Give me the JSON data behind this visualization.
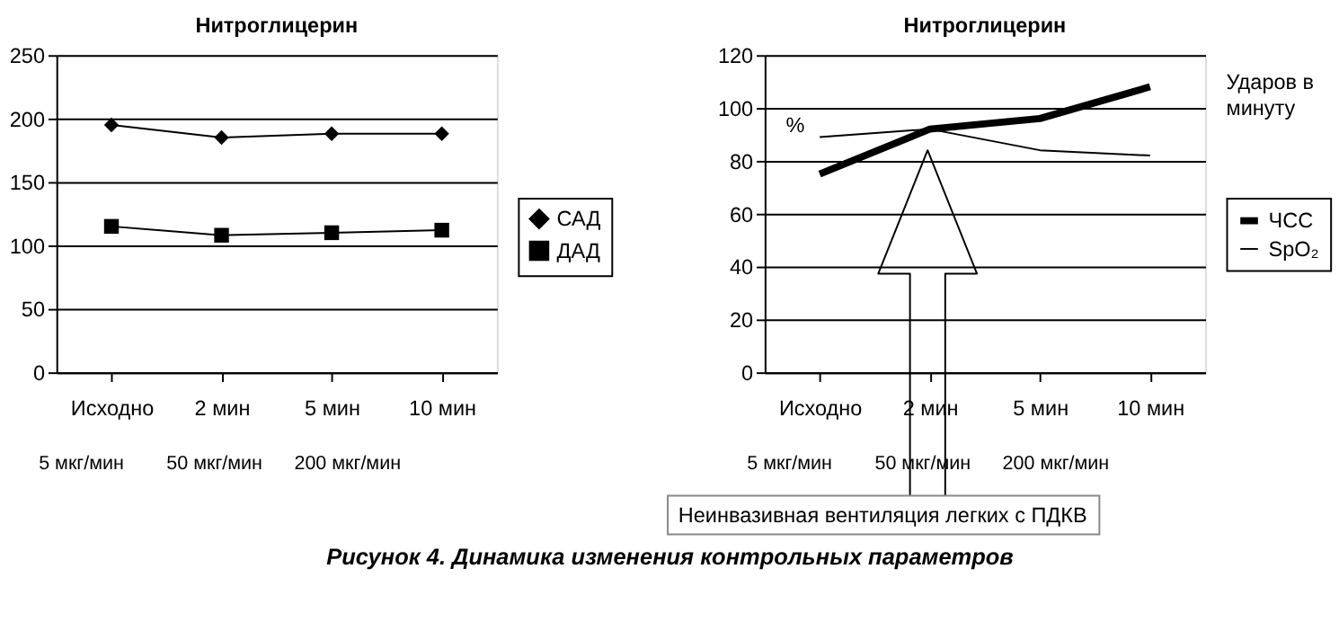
{
  "chart_data": [
    {
      "type": "line",
      "title": "Нитроглицерин",
      "categories": [
        "Исходно",
        "2 мин",
        "5 мин",
        "10 мин"
      ],
      "series": [
        {
          "name": "САД",
          "color": "#000000",
          "marker": "diamond",
          "values": [
            195,
            185,
            188,
            188
          ]
        },
        {
          "name": "ДАД",
          "color": "#000000",
          "marker": "square",
          "values": [
            115,
            108,
            110,
            112
          ]
        }
      ],
      "ylim": [
        0,
        250
      ],
      "yticks": [
        0,
        50,
        100,
        150,
        200,
        250
      ],
      "grid": "y",
      "legend": "right",
      "annotations": [
        "5 мкг/мин",
        "50 мкг/мин",
        "200 мкг/мин",
        "Рисунок 4. Динамика изменения контрольных параметров"
      ]
    },
    {
      "type": "line",
      "title": "Нитроглицерин",
      "categories": [
        "Исходно",
        "2 мин",
        "5 мин",
        "10 мин"
      ],
      "series": [
        {
          "name": "ЧСС",
          "color": "#000000",
          "marker": "none",
          "values": [
            75,
            92,
            96,
            108
          ]
        },
        {
          "name": "SpO₂",
          "color": "#000000",
          "marker": "none",
          "values": [
            89,
            92,
            84,
            82
          ]
        }
      ],
      "ylim": [
        0,
        120
      ],
      "yticks": [
        0,
        20,
        40,
        60,
        80,
        100,
        120
      ],
      "grid": "y",
      "legend": "right",
      "annotations": [
        "%",
        "Ударов в минуту",
        "Неинвазивная вентиляция легких с ПДКВ",
        "5 мкг/мин",
        "50 мкг/мин",
        "200 мкг/мин"
      ]
    }
  ]
}
